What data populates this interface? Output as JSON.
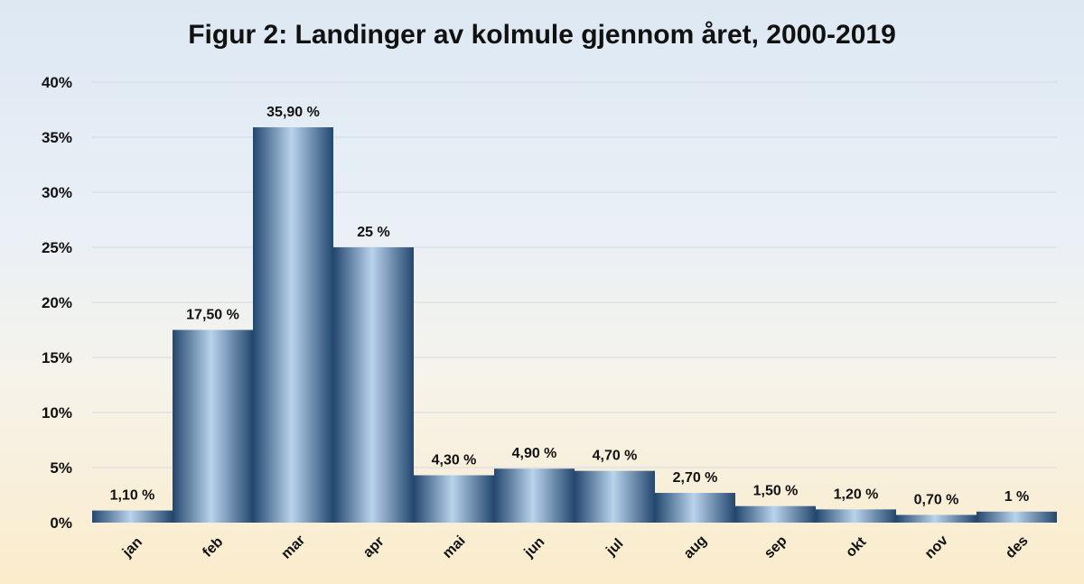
{
  "chart_data": {
    "type": "bar",
    "title": "Figur 2: Landinger av kolmule gjennom året, 2000-2019",
    "xlabel": "",
    "ylabel": "",
    "categories": [
      "jan",
      "feb",
      "mar",
      "apr",
      "mai",
      "jun",
      "jul",
      "aug",
      "sep",
      "okt",
      "nov",
      "des"
    ],
    "values": [
      1.1,
      17.5,
      35.9,
      25.0,
      4.3,
      4.9,
      4.7,
      2.7,
      1.5,
      1.2,
      0.7,
      1.0
    ],
    "data_labels": [
      "1,10 %",
      "17,50 %",
      "35,90 %",
      "25 %",
      "4,30 %",
      "4,90 %",
      "4,70 %",
      "2,70 %",
      "1,50 %",
      "1,20 %",
      "0,70 %",
      "1 %"
    ],
    "ylim": [
      0,
      40
    ],
    "yticks": [
      0,
      5,
      10,
      15,
      20,
      25,
      30,
      35,
      40
    ],
    "ytick_labels": [
      "0%",
      "5%",
      "10%",
      "15%",
      "20%",
      "25%",
      "30%",
      "35%",
      "40%"
    ],
    "grid": true,
    "legend": "none",
    "colors": {
      "bar_dark": "#23476f",
      "bar_light": "#b9d3ec",
      "gridline": "#d3dae2",
      "text": "#111111"
    }
  }
}
